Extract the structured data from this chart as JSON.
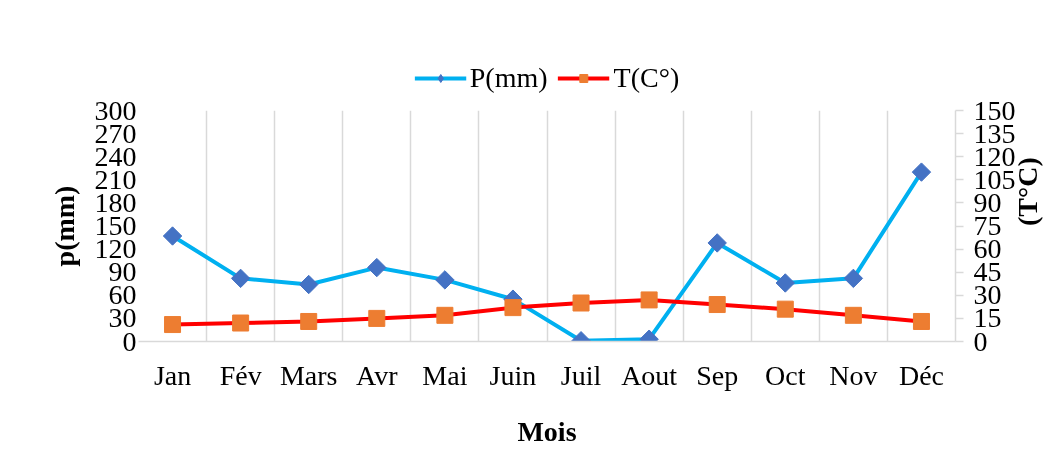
{
  "chart_data": {
    "type": "line",
    "xlabel": "Mois",
    "ylabel": "p(mm)",
    "y2label": "(T°C)",
    "categories": [
      "Jan",
      "Fév",
      "Mars",
      "Avr",
      "Mai",
      "Juin",
      "Juil",
      "Aout",
      "Sep",
      "Oct",
      "Nov",
      "Déc"
    ],
    "series": [
      {
        "name": "P(mm)",
        "color": "#00b0f0",
        "marker": "diamond",
        "colors": [
          "#4472c4",
          "#4472c4",
          "#4472c4",
          "#4472c4",
          "#4472c4",
          "#4472c4",
          "#4472c4",
          "#4472c4",
          "#4472c4",
          "#4472c4",
          "#4472c4",
          "#4472c4"
        ],
        "values": [
          137,
          82,
          74,
          96,
          80,
          55,
          1,
          3,
          128,
          76,
          82,
          220
        ]
      },
      {
        "name": "T(C°)",
        "color": "#ff0000",
        "marker": "square",
        "axis": "y2",
        "colors": [
          "#ed7d31",
          "#ed7d31",
          "#ed7d31",
          "#ed7d31",
          "#ed7d31",
          "#ed7d31",
          "#ed7d31",
          "#ed7d31",
          "#ed7d31",
          "#ed7d31",
          "#ed7d31",
          "#ed7d31"
        ],
        "values": [
          11,
          12,
          13,
          15,
          17,
          22,
          25,
          27,
          24,
          21,
          17,
          13
        ]
      }
    ],
    "ylim": [
      0,
      300
    ],
    "yticks": [
      0,
      30,
      60,
      90,
      120,
      150,
      180,
      210,
      240,
      270,
      300
    ],
    "y2lim": [
      0,
      150
    ],
    "y2ticks": [
      0,
      15,
      30,
      45,
      60,
      75,
      90,
      105,
      120,
      135,
      150
    ],
    "grid": "x",
    "legend": "top",
    "line_style": "solid"
  }
}
